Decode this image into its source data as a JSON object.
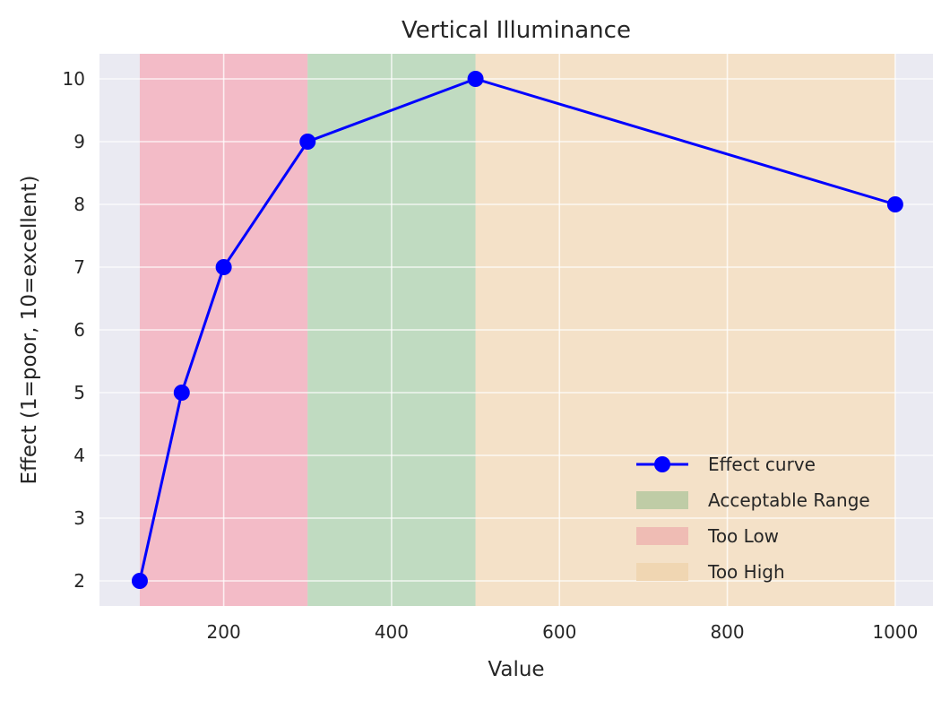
{
  "chart_data": {
    "type": "line",
    "title": "Vertical Illuminance",
    "xlabel": "Value",
    "ylabel": "Effect (1=poor, 10=excellent)",
    "xlim": [
      52,
      1045
    ],
    "ylim": [
      1.6,
      10.4
    ],
    "xticks": [
      200,
      400,
      600,
      800,
      1000
    ],
    "yticks": [
      2,
      3,
      4,
      5,
      6,
      7,
      8,
      9,
      10
    ],
    "grid": true,
    "legend_position": "lower-right",
    "series": [
      {
        "name": "Effect curve",
        "color": "#0000ff",
        "marker": "circle",
        "x": [
          100,
          150,
          200,
          300,
          500,
          1000
        ],
        "y": [
          2,
          5,
          7,
          9,
          10,
          8
        ]
      }
    ],
    "regions": [
      {
        "name": "Too Low",
        "x_start": 100,
        "x_end": 300,
        "color": "#f4b3bf"
      },
      {
        "name": "Acceptable Range",
        "x_start": 300,
        "x_end": 500,
        "color": "#b8d8b8"
      },
      {
        "name": "Too High",
        "x_start": 500,
        "x_end": 1000,
        "color": "#f6dfc1"
      }
    ],
    "legend": [
      {
        "label": "Effect curve",
        "kind": "line",
        "color": "#0000ff"
      },
      {
        "label": "Acceptable Range",
        "kind": "patch",
        "color": "#bfcca6"
      },
      {
        "label": "Too Low",
        "kind": "patch",
        "color": "#efbcb4"
      },
      {
        "label": "Too High",
        "kind": "patch",
        "color": "#f0d6b2"
      }
    ]
  }
}
